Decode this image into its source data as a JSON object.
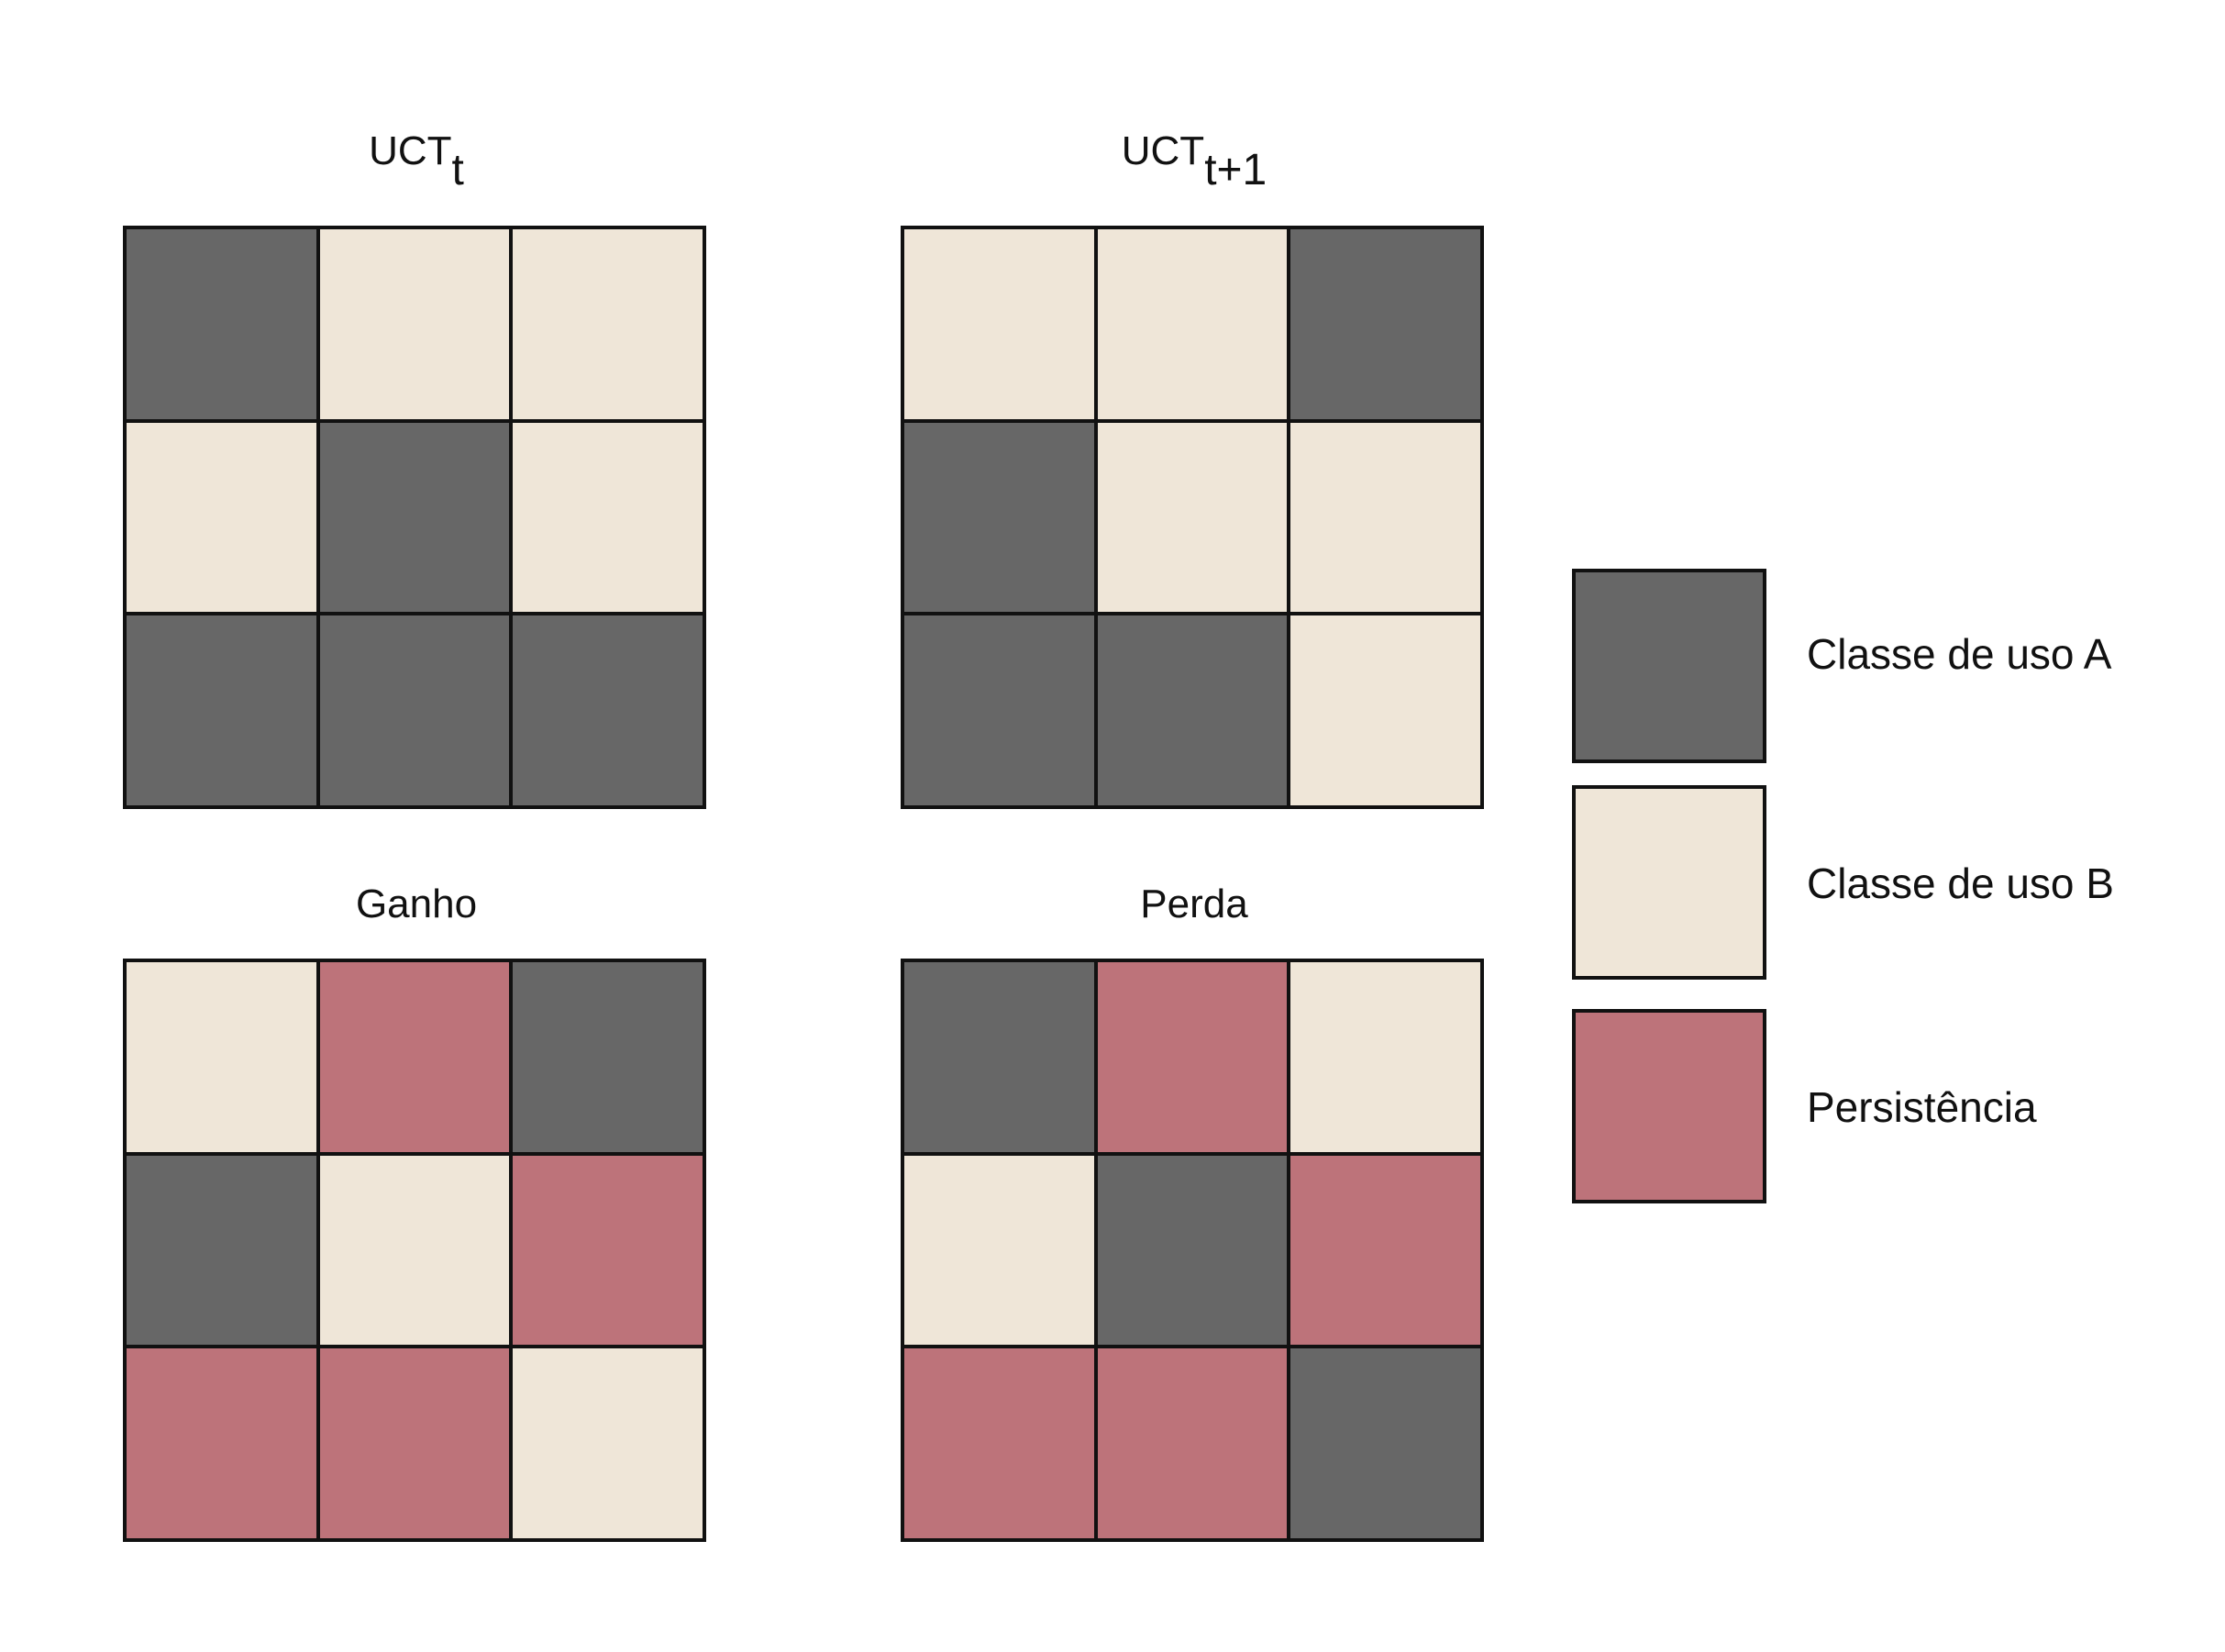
{
  "colors": {
    "class_a": "#676767",
    "class_b": "#efe6d8",
    "persistence": "#bd737a"
  },
  "panels": [
    {
      "title": "UCT",
      "subscript": "t",
      "cells": [
        "A",
        "B",
        "B",
        "B",
        "A",
        "B",
        "A",
        "A",
        "A"
      ]
    },
    {
      "title": "UCT",
      "subscript": "t+1",
      "cells": [
        "B",
        "B",
        "A",
        "A",
        "B",
        "B",
        "A",
        "A",
        "B"
      ]
    },
    {
      "title": "Ganho",
      "subscript": "",
      "cells": [
        "B",
        "P",
        "A",
        "A",
        "B",
        "P",
        "P",
        "P",
        "B"
      ]
    },
    {
      "title": "Perda",
      "subscript": "",
      "cells": [
        "A",
        "P",
        "B",
        "B",
        "A",
        "P",
        "P",
        "P",
        "A"
      ]
    }
  ],
  "legend": [
    {
      "key": "A",
      "label": "Classe de uso A"
    },
    {
      "key": "B",
      "label": "Classe de uso B"
    },
    {
      "key": "P",
      "label": "Persistência"
    }
  ]
}
